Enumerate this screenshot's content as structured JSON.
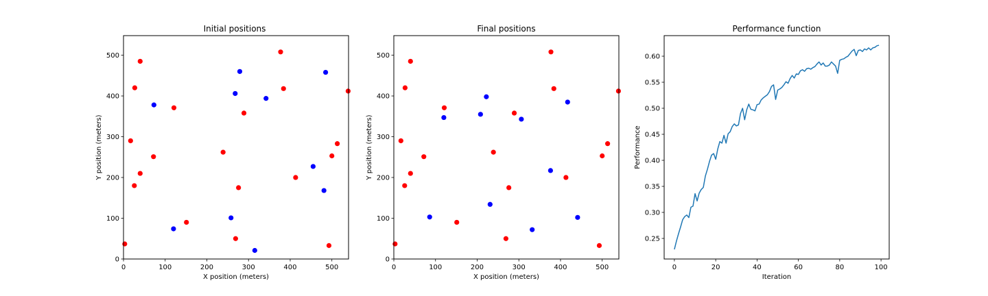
{
  "colors": {
    "red_points": "#ff0000",
    "blue_points": "#0000ff",
    "line": "#1f77b4"
  },
  "chart_data": [
    {
      "type": "scatter",
      "title": "Initial positions",
      "xlabel": "X position (meters)",
      "ylabel": "Y position (meters)",
      "xlim": [
        0,
        540
      ],
      "ylim": [
        0,
        548
      ],
      "xticks": [
        0,
        100,
        200,
        300,
        400,
        500
      ],
      "yticks": [
        0,
        100,
        200,
        300,
        400,
        500
      ],
      "points_red": [
        [
          40,
          485
        ],
        [
          27,
          420
        ],
        [
          121,
          371
        ],
        [
          377,
          508
        ],
        [
          384,
          418
        ],
        [
          289,
          358
        ],
        [
          539,
          412
        ],
        [
          17,
          290
        ],
        [
          72,
          251
        ],
        [
          40,
          210
        ],
        [
          26,
          180
        ],
        [
          239,
          262
        ],
        [
          276,
          175
        ],
        [
          513,
          283
        ],
        [
          500,
          253
        ],
        [
          413,
          200
        ],
        [
          151,
          90
        ],
        [
          269,
          50
        ],
        [
          493,
          33
        ],
        [
          3,
          37
        ]
      ],
      "points_blue": [
        [
          279,
          460
        ],
        [
          268,
          406
        ],
        [
          342,
          394
        ],
        [
          73,
          378
        ],
        [
          485,
          458
        ],
        [
          455,
          227
        ],
        [
          481,
          168
        ],
        [
          120,
          74
        ],
        [
          258,
          101
        ],
        [
          315,
          21
        ]
      ]
    },
    {
      "type": "scatter",
      "title": "Final positions",
      "xlabel": "X position (meters)",
      "ylabel": "Y position (meters)",
      "xlim": [
        0,
        540
      ],
      "ylim": [
        0,
        548
      ],
      "xticks": [
        0,
        100,
        200,
        300,
        400,
        500
      ],
      "yticks": [
        0,
        100,
        200,
        300,
        400,
        500
      ],
      "points_red": [
        [
          40,
          485
        ],
        [
          27,
          420
        ],
        [
          121,
          371
        ],
        [
          377,
          508
        ],
        [
          384,
          418
        ],
        [
          289,
          358
        ],
        [
          539,
          412
        ],
        [
          17,
          290
        ],
        [
          72,
          251
        ],
        [
          40,
          210
        ],
        [
          26,
          180
        ],
        [
          239,
          262
        ],
        [
          276,
          175
        ],
        [
          513,
          283
        ],
        [
          500,
          253
        ],
        [
          413,
          200
        ],
        [
          151,
          90
        ],
        [
          269,
          50
        ],
        [
          493,
          33
        ],
        [
          3,
          37
        ]
      ],
      "points_blue": [
        [
          222,
          398
        ],
        [
          208,
          355
        ],
        [
          120,
          347
        ],
        [
          306,
          343
        ],
        [
          417,
          385
        ],
        [
          376,
          217
        ],
        [
          231,
          134
        ],
        [
          86,
          103
        ],
        [
          332,
          72
        ],
        [
          441,
          102
        ]
      ]
    },
    {
      "type": "line",
      "title": "Performance function",
      "xlabel": "Iteration",
      "ylabel": "Performance",
      "xlim": [
        -4.95,
        103.95
      ],
      "ylim": [
        0.2105,
        0.6395
      ],
      "xticks": [
        0,
        20,
        40,
        60,
        80,
        100
      ],
      "yticks": [
        0.25,
        0.3,
        0.35,
        0.4,
        0.45,
        0.5,
        0.55,
        0.6
      ],
      "ytick_labels": [
        "0.25",
        "0.30",
        "0.35",
        "0.40",
        "0.45",
        "0.50",
        "0.55",
        "0.60"
      ],
      "x": [
        0,
        1,
        2,
        3,
        4,
        5,
        6,
        7,
        8,
        9,
        10,
        11,
        12,
        13,
        14,
        15,
        16,
        17,
        18,
        19,
        20,
        21,
        22,
        23,
        24,
        25,
        26,
        27,
        28,
        29,
        30,
        31,
        32,
        33,
        34,
        35,
        36,
        37,
        38,
        39,
        40,
        41,
        42,
        43,
        44,
        45,
        46,
        47,
        48,
        49,
        50,
        51,
        52,
        53,
        54,
        55,
        56,
        57,
        58,
        59,
        60,
        61,
        62,
        63,
        64,
        65,
        66,
        67,
        68,
        69,
        70,
        71,
        72,
        73,
        74,
        75,
        76,
        77,
        78,
        79,
        80,
        81,
        82,
        83,
        84,
        85,
        86,
        87,
        88,
        89,
        90,
        91,
        92,
        93,
        94,
        95,
        96,
        97,
        98,
        99
      ],
      "series": [
        {
          "values": [
            0.229,
            0.245,
            0.259,
            0.272,
            0.286,
            0.292,
            0.295,
            0.29,
            0.31,
            0.312,
            0.336,
            0.322,
            0.337,
            0.344,
            0.348,
            0.37,
            0.383,
            0.398,
            0.41,
            0.413,
            0.402,
            0.422,
            0.436,
            0.433,
            0.448,
            0.433,
            0.451,
            0.455,
            0.465,
            0.47,
            0.466,
            0.468,
            0.49,
            0.5,
            0.478,
            0.497,
            0.508,
            0.498,
            0.497,
            0.495,
            0.507,
            0.508,
            0.516,
            0.52,
            0.523,
            0.526,
            0.532,
            0.542,
            0.545,
            0.517,
            0.535,
            0.537,
            0.54,
            0.545,
            0.551,
            0.548,
            0.557,
            0.563,
            0.558,
            0.566,
            0.565,
            0.572,
            0.574,
            0.571,
            0.576,
            0.577,
            0.575,
            0.578,
            0.58,
            0.585,
            0.589,
            0.583,
            0.587,
            0.581,
            0.581,
            0.583,
            0.589,
            0.585,
            0.581,
            0.567,
            0.592,
            0.594,
            0.595,
            0.598,
            0.6,
            0.605,
            0.61,
            0.613,
            0.601,
            0.611,
            0.612,
            0.609,
            0.614,
            0.612,
            0.616,
            0.612,
            0.616,
            0.617,
            0.62,
            0.621
          ]
        }
      ]
    }
  ]
}
